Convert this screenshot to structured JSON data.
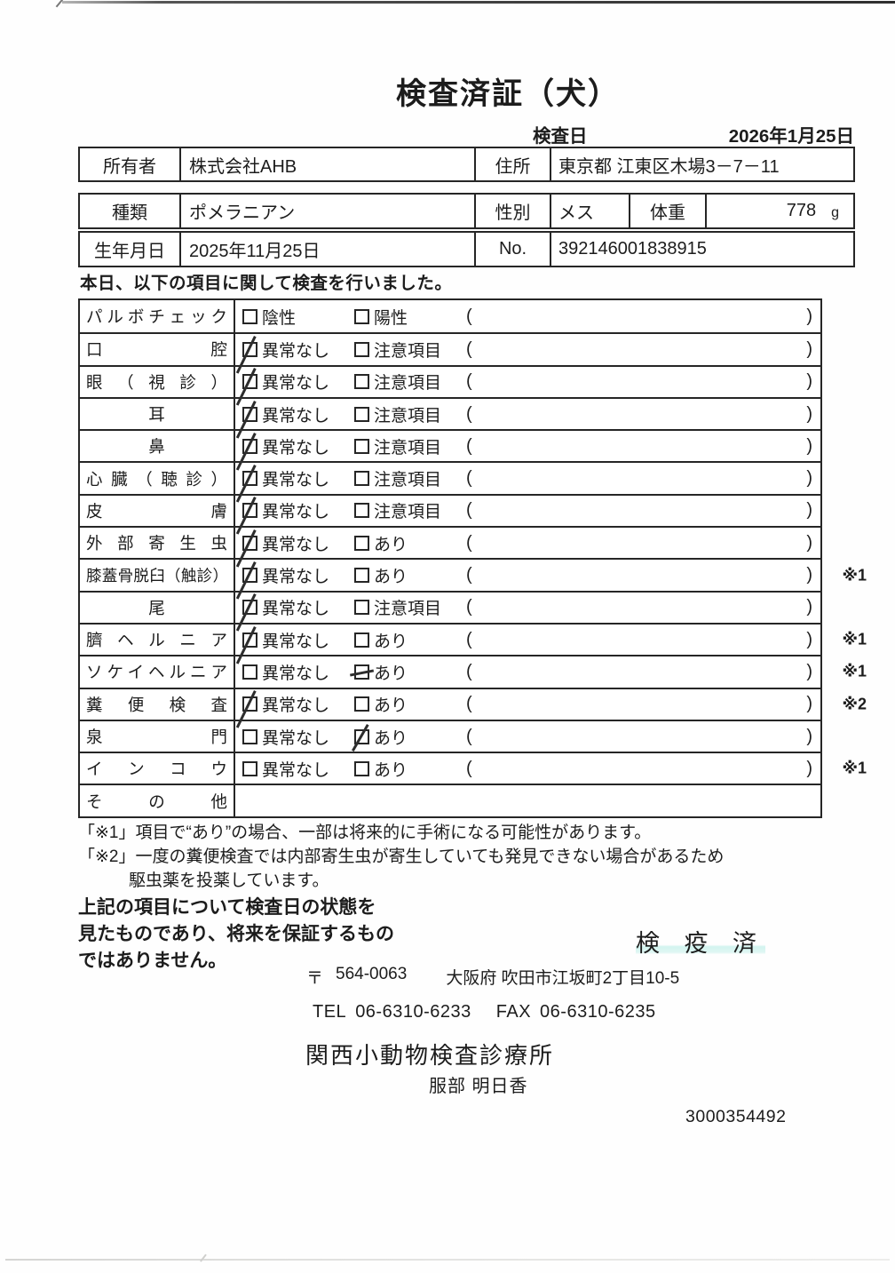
{
  "document": {
    "title": "検査済証（犬）",
    "date_label": "検査日",
    "date_value": "2026年1月25日",
    "intro": "本日、以下の項目に関して検査を行いました。",
    "doc_number": "3000354492"
  },
  "owner": {
    "label": "所有者",
    "name": "株式会社AHB",
    "address_label": "住所",
    "address": "東京都 江東区木場3－7－11"
  },
  "animal": {
    "breed_label": "種類",
    "breed": "ポメラニアン",
    "sex_label": "性別",
    "sex": "メス",
    "weight_label": "体重",
    "weight_value": "778",
    "weight_unit": "g",
    "birth_label": "生年月日",
    "birth_value": "2025年11月25日",
    "no_label": "No.",
    "no_value": "392146001838915"
  },
  "exam_table": {
    "paren_open": "(",
    "paren_close": ")",
    "rows": [
      {
        "label": "パルボチェック",
        "opt1": "陰性",
        "opt2": "陽性",
        "checked_option": null,
        "check_style": "",
        "note": "",
        "label_align": "justify",
        "no_paren": false
      },
      {
        "label": "口腔",
        "opt1": "異常なし",
        "opt2": "注意項目",
        "checked_option": 1,
        "check_style": "slash",
        "note": "",
        "label_align": "justify",
        "no_paren": false
      },
      {
        "label": "眼（視診）",
        "opt1": "異常なし",
        "opt2": "注意項目",
        "checked_option": 1,
        "check_style": "slash",
        "note": "",
        "label_align": "justify",
        "no_paren": false
      },
      {
        "label": "耳",
        "opt1": "異常なし",
        "opt2": "注意項目",
        "checked_option": 1,
        "check_style": "slash",
        "note": "",
        "label_align": "center",
        "no_paren": false
      },
      {
        "label": "鼻",
        "opt1": "異常なし",
        "opt2": "注意項目",
        "checked_option": 1,
        "check_style": "slash",
        "note": "",
        "label_align": "center",
        "no_paren": false
      },
      {
        "label": "心臓（聴診）",
        "opt1": "異常なし",
        "opt2": "注意項目",
        "checked_option": 1,
        "check_style": "slash",
        "note": "",
        "label_align": "justify",
        "no_paren": false
      },
      {
        "label": "皮膚",
        "opt1": "異常なし",
        "opt2": "注意項目",
        "checked_option": 1,
        "check_style": "slash",
        "note": "",
        "label_align": "justify",
        "no_paren": false
      },
      {
        "label": "外部寄生虫",
        "opt1": "異常なし",
        "opt2": "あり",
        "checked_option": 1,
        "check_style": "slash",
        "note": "",
        "label_align": "justify",
        "no_paren": false
      },
      {
        "label": "膝蓋骨脱臼（触診）",
        "opt1": "異常なし",
        "opt2": "あり",
        "checked_option": 1,
        "check_style": "slash",
        "note": "※1",
        "label_align": "justify",
        "no_paren": false
      },
      {
        "label": "尾",
        "opt1": "異常なし",
        "opt2": "注意項目",
        "checked_option": 1,
        "check_style": "slash",
        "note": "",
        "label_align": "center",
        "no_paren": false
      },
      {
        "label": "臍ヘルニア",
        "opt1": "異常なし",
        "opt2": "あり",
        "checked_option": 1,
        "check_style": "slash",
        "note": "※1",
        "label_align": "justify",
        "no_paren": false
      },
      {
        "label": "ソケイヘルニア",
        "opt1": "異常なし",
        "opt2": "あり",
        "checked_option": 2,
        "check_style": "strike",
        "note": "※1",
        "label_align": "justify",
        "no_paren": false
      },
      {
        "label": "糞便検査",
        "opt1": "異常なし",
        "opt2": "あり",
        "checked_option": 1,
        "check_style": "slash",
        "note": "※2",
        "label_align": "justify",
        "no_paren": false
      },
      {
        "label": "泉門",
        "opt1": "異常なし",
        "opt2": "あり",
        "checked_option": 2,
        "check_style": "slash2",
        "note": "",
        "label_align": "justify",
        "no_paren": false
      },
      {
        "label": "インコウ",
        "opt1": "異常なし",
        "opt2": "あり",
        "checked_option": null,
        "check_style": "",
        "note": "※1",
        "label_align": "justify",
        "no_paren": false
      },
      {
        "label": "その他",
        "opt1": "",
        "opt2": "",
        "checked_option": null,
        "check_style": "",
        "note": "",
        "label_align": "justify",
        "no_paren": true
      }
    ]
  },
  "notes": {
    "note1": "「※1」項目で“あり”の場合、一部は将来的に手術になる可能性があります。",
    "note2_line1": "「※2」一度の糞便検査では内部寄生虫が寄生していても発見できない場合があるため",
    "note2_line2": "駆虫薬を投薬しています。",
    "disclaimer_line1": "上記の項目について検査日の状態を",
    "disclaimer_line2": "見たものであり、将来を保証するもの",
    "disclaimer_line3": "ではありません。"
  },
  "clinic": {
    "stamp": "検 疫 済",
    "postal_mark": "〒",
    "postal_code": "564-0063",
    "address": "大阪府 吹田市江坂町2丁目10-5",
    "tel_label": "TEL",
    "tel_number": "06-6310-6233",
    "fax_label": "FAX",
    "fax_number": "06-6310-6235",
    "name": "関西小動物検査診療所",
    "examiner": "服部 明日香"
  }
}
